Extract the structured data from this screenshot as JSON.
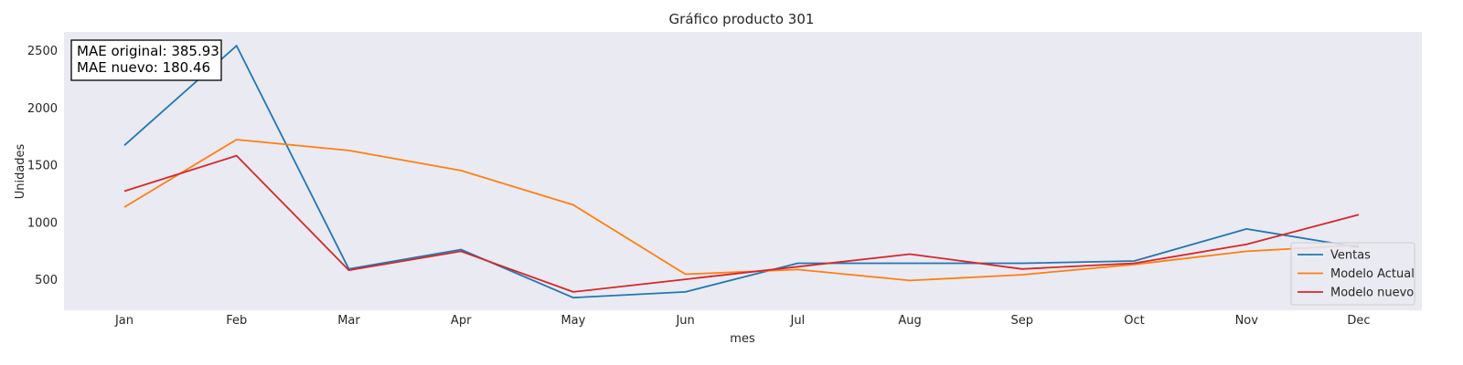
{
  "chart_data": {
    "type": "line",
    "title": "Gráfico producto 301",
    "xlabel": "mes",
    "ylabel": "Unidades",
    "categories": [
      "Jan",
      "Feb",
      "Mar",
      "Apr",
      "May",
      "Jun",
      "Jul",
      "Aug",
      "Sep",
      "Oct",
      "Nov",
      "Dec"
    ],
    "y_ticks": [
      500,
      1000,
      1500,
      2000,
      2500
    ],
    "ylim": [
      230,
      2660
    ],
    "grid": false,
    "background": "#eaeaf2",
    "legend_position": "bottom-right",
    "annotation": {
      "line1": "MAE original: 385.93",
      "line2": "MAE nuevo: 180.46"
    },
    "series": [
      {
        "name": "Ventas",
        "color": "#1f77b4",
        "values": [
          1670,
          2540,
          590,
          760,
          340,
          390,
          640,
          640,
          640,
          660,
          940,
          780
        ]
      },
      {
        "name": "Modelo Actual",
        "color": "#ff7f0e",
        "values": [
          1130,
          1720,
          1625,
          1450,
          1150,
          545,
          585,
          490,
          540,
          630,
          745,
          800
        ]
      },
      {
        "name": "Modelo nuevo",
        "color": "#d62728",
        "values": [
          1270,
          1580,
          580,
          745,
          390,
          500,
          610,
          720,
          590,
          640,
          805,
          1065
        ]
      }
    ]
  }
}
